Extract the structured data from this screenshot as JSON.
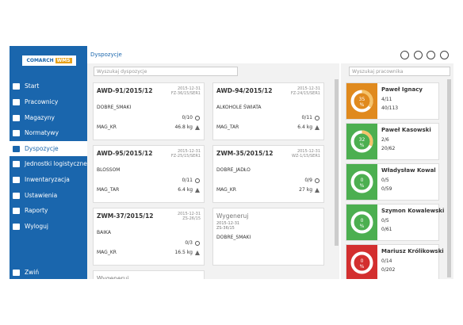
{
  "header": {
    "breadcrumb": "Dyspozycje"
  },
  "sidebar": {
    "logo": {
      "brand": "COMARCH",
      "product": "WMS"
    },
    "menu": [
      "Start",
      "Pracownicy",
      "Magazyny",
      "Normatywy",
      "Dyspozycje",
      "Jednostki logistyczne",
      "Inwentaryzacja",
      "Ustawienia",
      "Raporty",
      "Wyloguj"
    ],
    "selected": 4,
    "collapse": "Zwiń"
  },
  "orders": {
    "search_placeholder": "Wyszukaj dyspozycje",
    "cards": [
      {
        "title": "AWD-91/2015/12",
        "date": "2015-12-31",
        "doc": "FZ-36/15/SER1",
        "client": "DOBRE_SMAKI",
        "count": "0/10",
        "warehouse": "MAG_KR",
        "weight": "46.8 kg"
      },
      {
        "title": "AWD-94/2015/12",
        "date": "2015-12-31",
        "doc": "FZ-24/15/SER1",
        "client": "ALKOHOLE ŚWIATA",
        "count": "0/11",
        "warehouse": "MAG_TAR",
        "weight": "6.4 kg"
      },
      {
        "title": "AWD-95/2015/12",
        "date": "2015-12-31",
        "doc": "FZ-25/15/SER1",
        "client": "BLOSSOM",
        "count": "0/11",
        "warehouse": "MAG_TAR",
        "weight": "6.4 kg"
      },
      {
        "title": "ZWM-35/2015/12",
        "date": "2015-12-31",
        "doc": "WZ-1/15/SER1",
        "client": "DOBRE_JADŁO",
        "count": "0/9",
        "warehouse": "MAG_KR",
        "weight": "27 kg"
      },
      {
        "title": "ZWM-37/2015/12",
        "date": "2015-12-31",
        "doc": "ZS-26/15",
        "client": "BAIKA",
        "count": "0/3",
        "warehouse": "MAG_KR",
        "weight": "16.5 kg"
      },
      {
        "title": "Wygeneruj",
        "date": "2015-12-31",
        "doc": "ZS-36/15",
        "client": "DOBRE_SMAKI"
      },
      {
        "title": "Wygeneruj"
      }
    ]
  },
  "employees": {
    "search_placeholder": "Wyszukaj pracownika",
    "list": [
      {
        "name": "Paweł Ignacy",
        "percent": "35",
        "unit": "%",
        "color": "#e08a1e",
        "orders": "4/11",
        "items": "40/113"
      },
      {
        "name": "Paweł Kasowski",
        "percent": "32",
        "unit": "%",
        "color": "#4caf50",
        "orders": "2/6",
        "items": "20/62"
      },
      {
        "name": "Władysław Kowal",
        "percent": "0",
        "unit": "%",
        "color": "#4caf50",
        "orders": "0/5",
        "items": "0/59"
      },
      {
        "name": "Szymon Kowalewski",
        "percent": "0",
        "unit": "%",
        "color": "#4caf50",
        "orders": "0/5",
        "items": "0/61"
      },
      {
        "name": "Mariusz Królikowski",
        "percent": "0",
        "unit": "%",
        "color": "#d32f2f",
        "orders": "0/14",
        "items": "0/202"
      }
    ]
  }
}
